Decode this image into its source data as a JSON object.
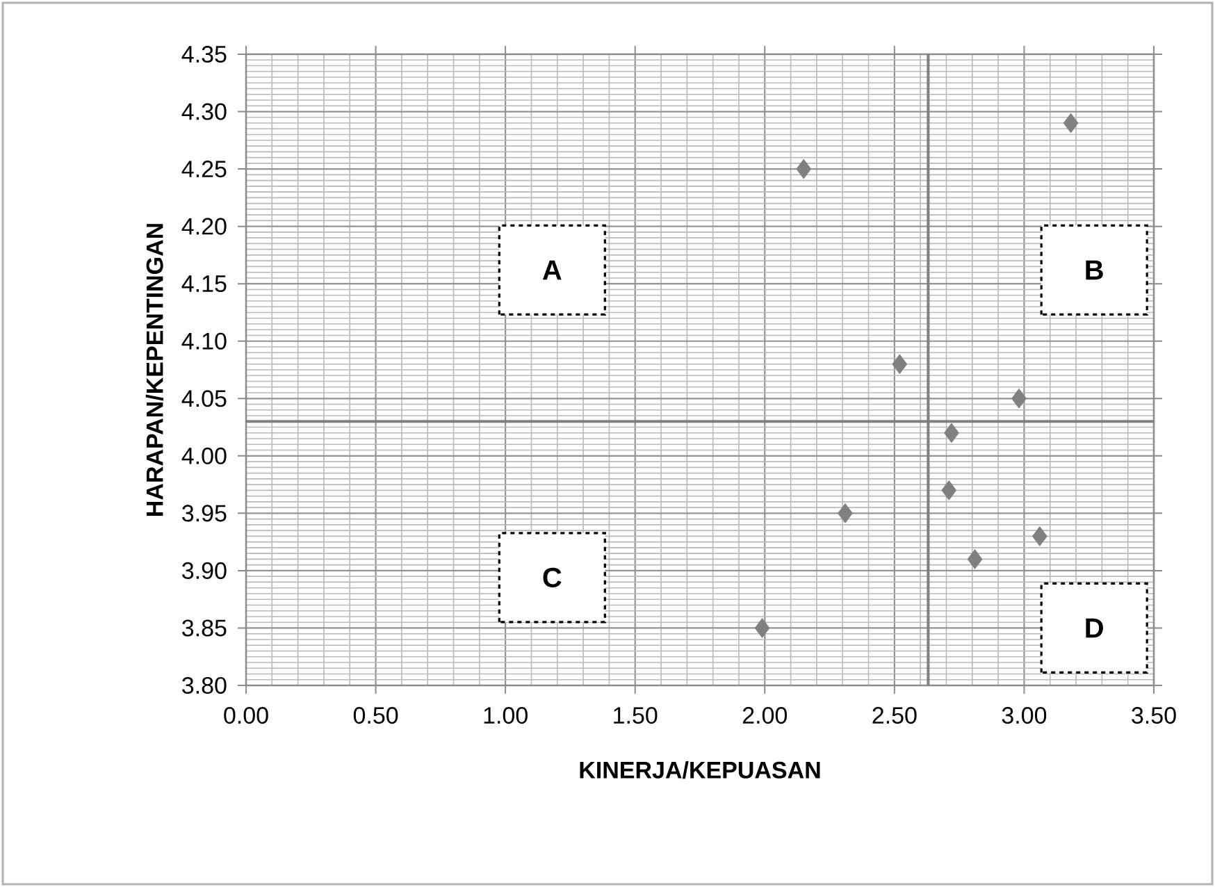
{
  "chart_data": {
    "type": "scatter",
    "xlabel": "KINERJA/KEPUASAN",
    "ylabel": "HARAPAN/KEPENTINGAN",
    "x": [
      3.18,
      2.15,
      2.52,
      2.98,
      2.72,
      2.71,
      2.31,
      3.06,
      2.81,
      1.99
    ],
    "series": [
      {
        "color": "#808080",
        "values": [
          4.29,
          4.25,
          4.08,
          4.05,
          4.02,
          3.97,
          3.95,
          3.93,
          3.91,
          3.85
        ]
      }
    ],
    "marker": "diamond",
    "grid": true,
    "xlim": [
      0,
      3.5
    ],
    "ylim": [
      3.8,
      4.35
    ],
    "xticks": [
      {
        "value": 0,
        "label": "0.00"
      },
      {
        "value": 0.5,
        "label": "0.50"
      },
      {
        "value": 1,
        "label": "1.00"
      },
      {
        "value": 1.5,
        "label": "1.50"
      },
      {
        "value": 2,
        "label": "2.00"
      },
      {
        "value": 2.5,
        "label": "2.50"
      },
      {
        "value": 3,
        "label": "3.00"
      },
      {
        "value": 3.5,
        "label": "3.50"
      }
    ],
    "yticks": [
      {
        "value": 3.8,
        "label": "3.80"
      },
      {
        "value": 3.85,
        "label": "3.85"
      },
      {
        "value": 3.9,
        "label": "3.90"
      },
      {
        "value": 3.95,
        "label": "3.95"
      },
      {
        "value": 4.0,
        "label": "4.00"
      },
      {
        "value": 4.05,
        "label": "4.05"
      },
      {
        "value": 4.1,
        "label": "4.10"
      },
      {
        "value": 4.15,
        "label": "4.15"
      },
      {
        "value": 4.2,
        "label": "4.20"
      },
      {
        "value": 4.25,
        "label": "4.25"
      },
      {
        "value": 4.3,
        "label": "4.30"
      },
      {
        "value": 4.35,
        "label": "4.35"
      }
    ],
    "ref_lines": [
      {
        "axis": "x",
        "value": 2.63,
        "color": "#7f7f7f"
      },
      {
        "axis": "y",
        "value": 4.03,
        "color": "#7f7f7f"
      }
    ],
    "annotations": [
      "A",
      "B",
      "C",
      "D"
    ]
  }
}
